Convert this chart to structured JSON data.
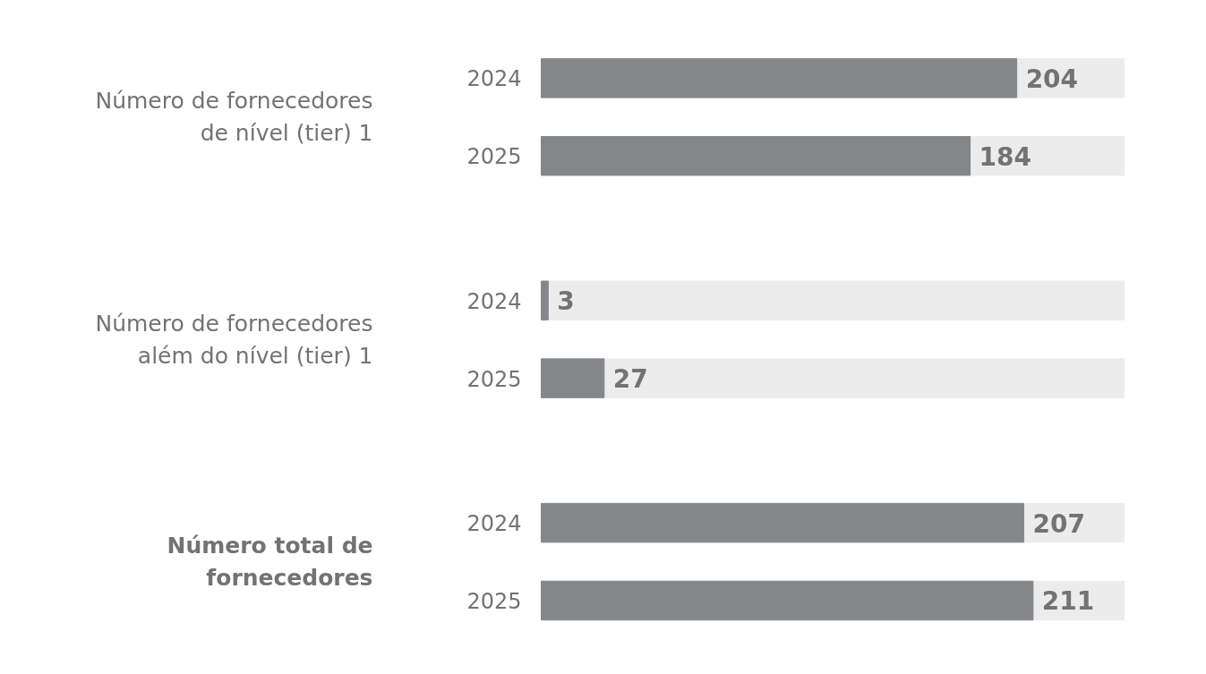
{
  "chart_data": {
    "type": "bar",
    "orientation": "horizontal",
    "categories": [
      "2024",
      "2025",
      "2024",
      "2025",
      "2024",
      "2025"
    ],
    "values": [
      204,
      184,
      3,
      27,
      207,
      211
    ],
    "color": "#858689",
    "tick_labels": "y",
    "data_labels": true,
    "grid": false,
    "annotations": [
      "Número de fornecedores de nível (tier) 1",
      "Número de fornecedores além do nível (tier) 1",
      "Número total de fornecedores"
    ]
  }
}
